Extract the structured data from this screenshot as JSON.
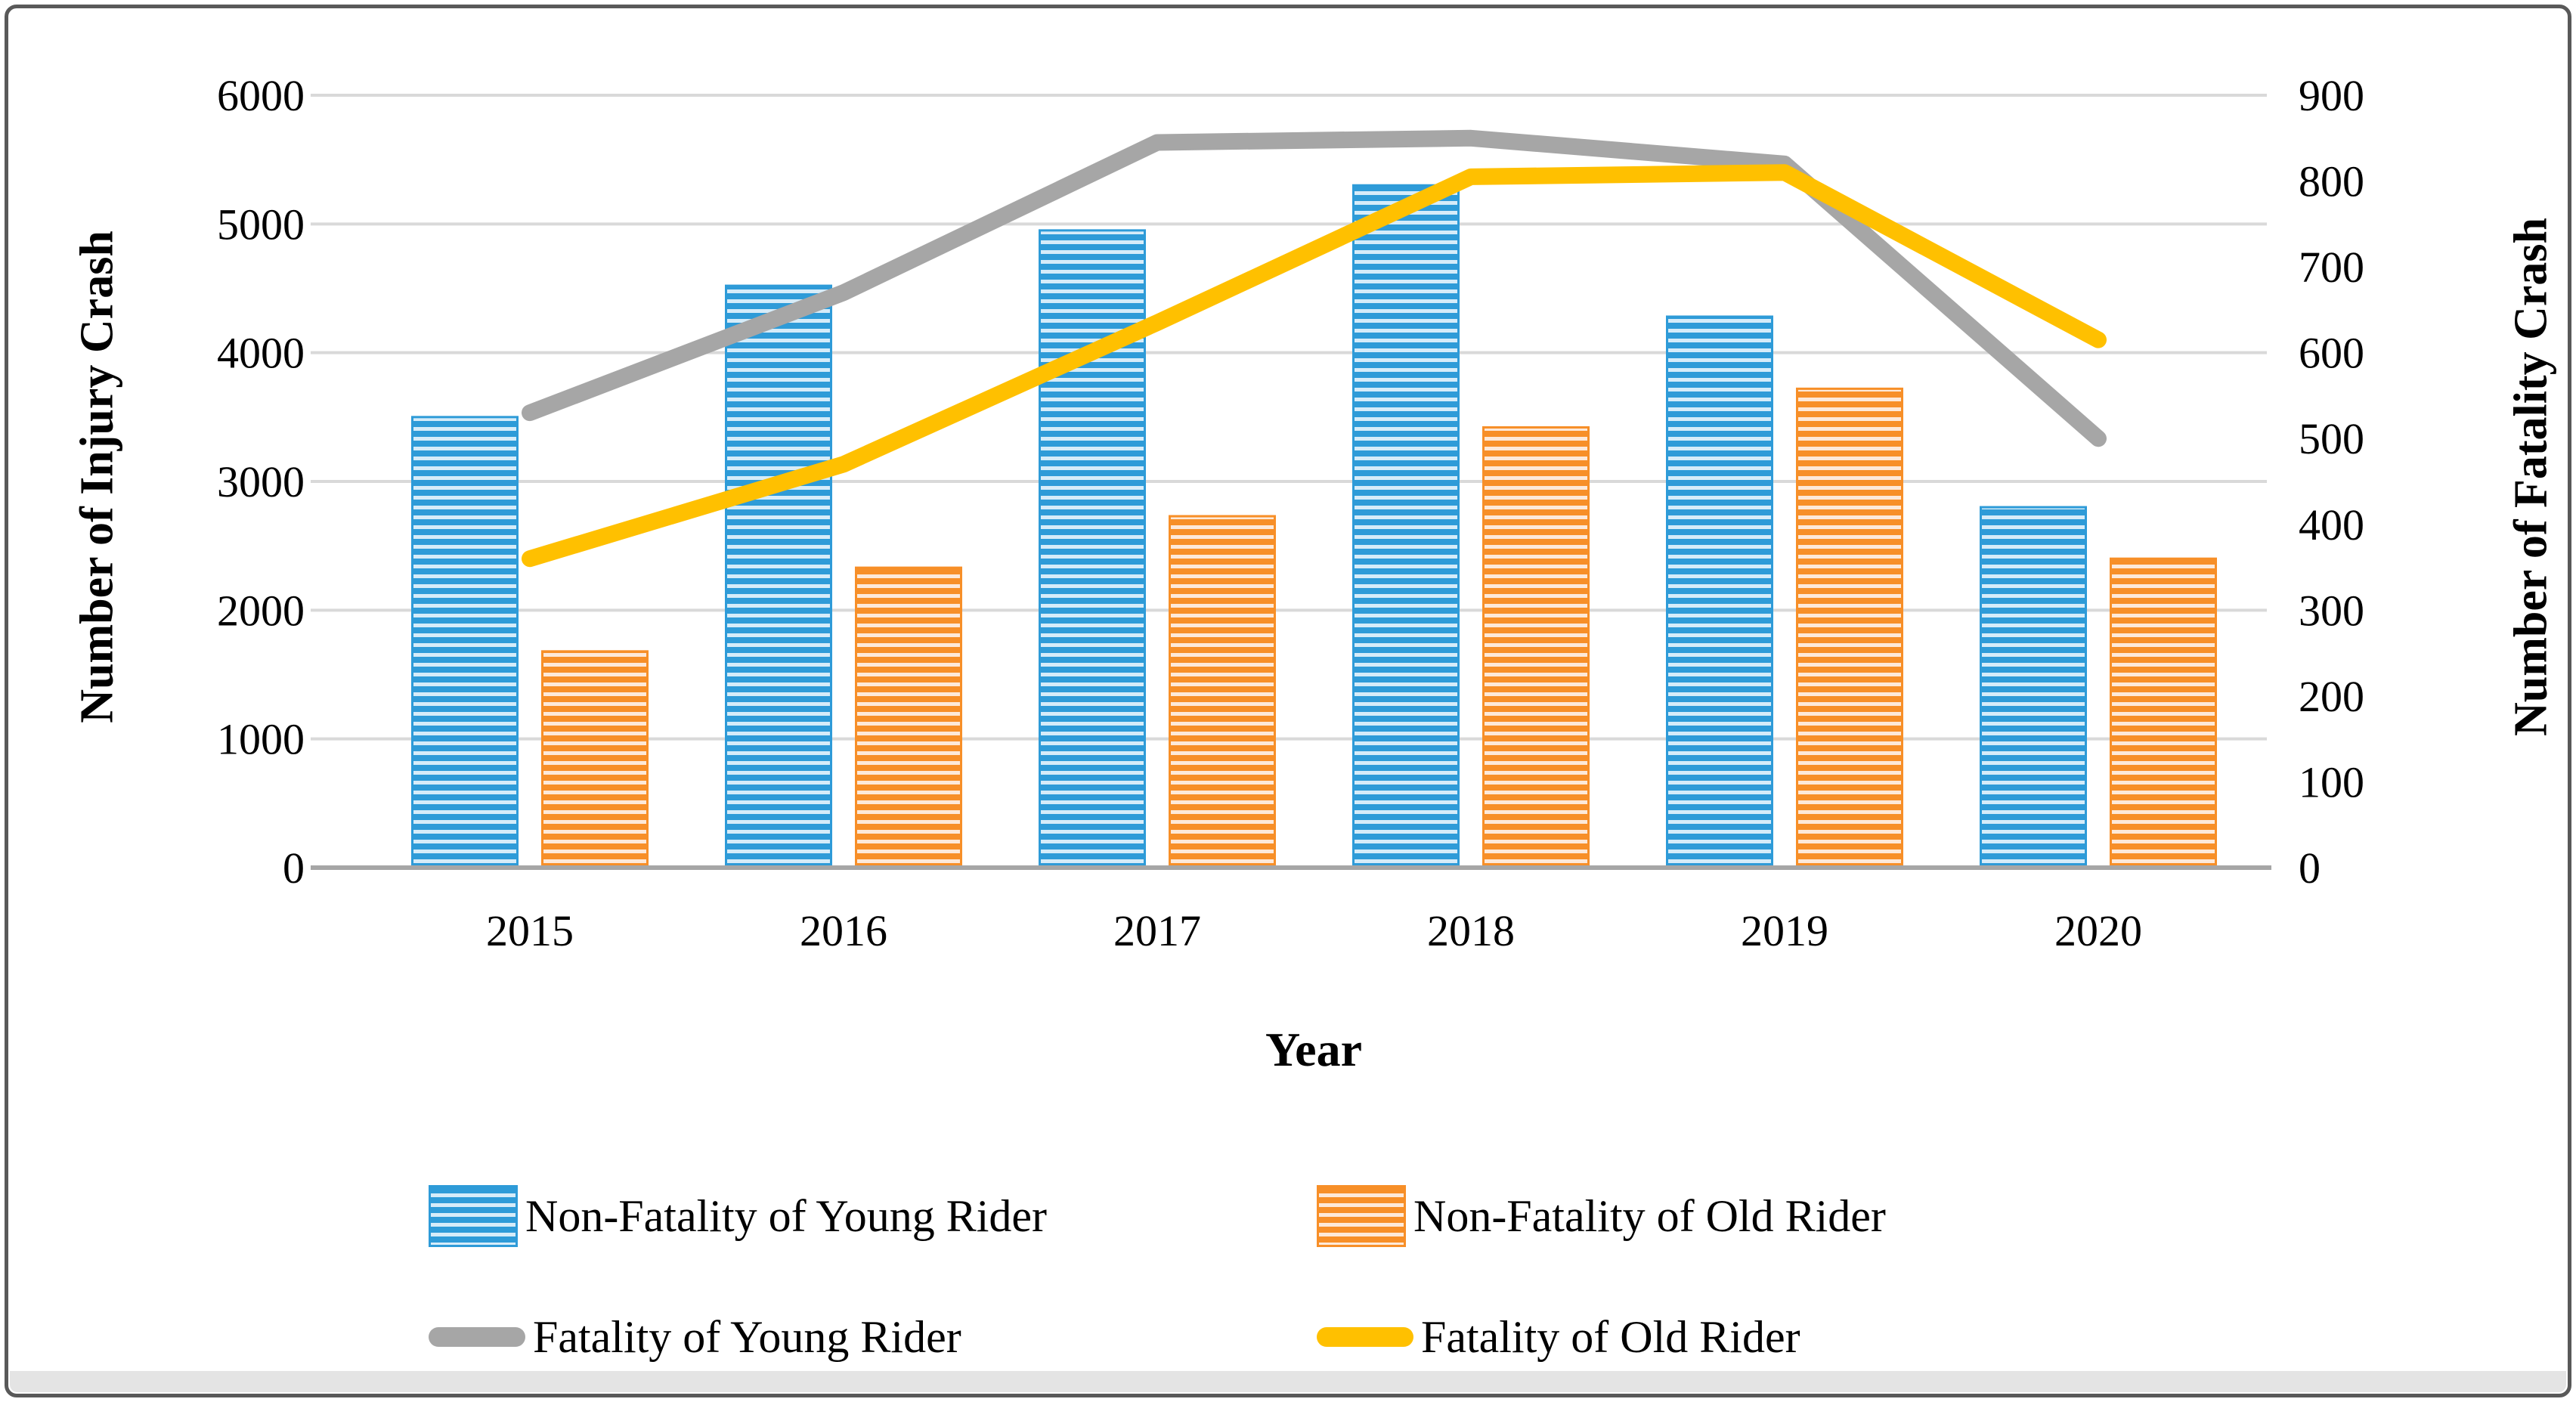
{
  "figure": {
    "x_axis_title": "Year",
    "y_left_title": "Number of Injury Crash",
    "y_right_title": "Number of Fatality Crash"
  },
  "colors": {
    "bar_young": "#2E9BD8",
    "bar_young_stripe": "#D6ECF9",
    "bar_old": "#F78F28",
    "bar_old_stripe": "#FDE9D9",
    "line_young": "#A6A6A6",
    "line_old": "#FFC000",
    "gridline": "#D9D9D9",
    "axis_line": "#A6A6A6",
    "text": "#000000"
  },
  "chart_data": {
    "type": "bar",
    "subtype": "combo-bar-line-dual-axis",
    "title": "",
    "xlabel": "Year",
    "categories": [
      "2015",
      "2016",
      "2017",
      "2018",
      "2019",
      "2020"
    ],
    "series": [
      {
        "name": "Non-Fatality of Young Rider",
        "type": "bar",
        "axis": "left",
        "color": "#2E9BD8",
        "values": [
          3500,
          4520,
          4950,
          5300,
          4280,
          2800
        ]
      },
      {
        "name": "Non-Fatality of Old Rider",
        "type": "bar",
        "axis": "left",
        "color": "#F78F28",
        "values": [
          1680,
          2330,
          2730,
          3420,
          3720,
          2400
        ]
      },
      {
        "name": "Fatality of Young Rider",
        "type": "line",
        "axis": "right",
        "color": "#A6A6A6",
        "values": [
          530,
          670,
          845,
          850,
          820,
          500
        ]
      },
      {
        "name": "Fatality of Old Rider",
        "type": "line",
        "axis": "right",
        "color": "#FFC000",
        "values": [
          360,
          470,
          635,
          805,
          810,
          615
        ]
      }
    ],
    "left_axis": {
      "label": "Number of Injury Crash",
      "min": 0,
      "max": 6000,
      "step": 1000,
      "ticks": [
        "6000",
        "5000",
        "4000",
        "3000",
        "2000",
        "1000",
        "0"
      ]
    },
    "right_axis": {
      "label": "Number of Fatality Crash",
      "min": 0,
      "max": 900,
      "step": 100,
      "ticks": [
        "900",
        "800",
        "700",
        "600",
        "500",
        "400",
        "300",
        "200",
        "100",
        "0"
      ]
    },
    "grid": true,
    "legend_position": "bottom"
  }
}
